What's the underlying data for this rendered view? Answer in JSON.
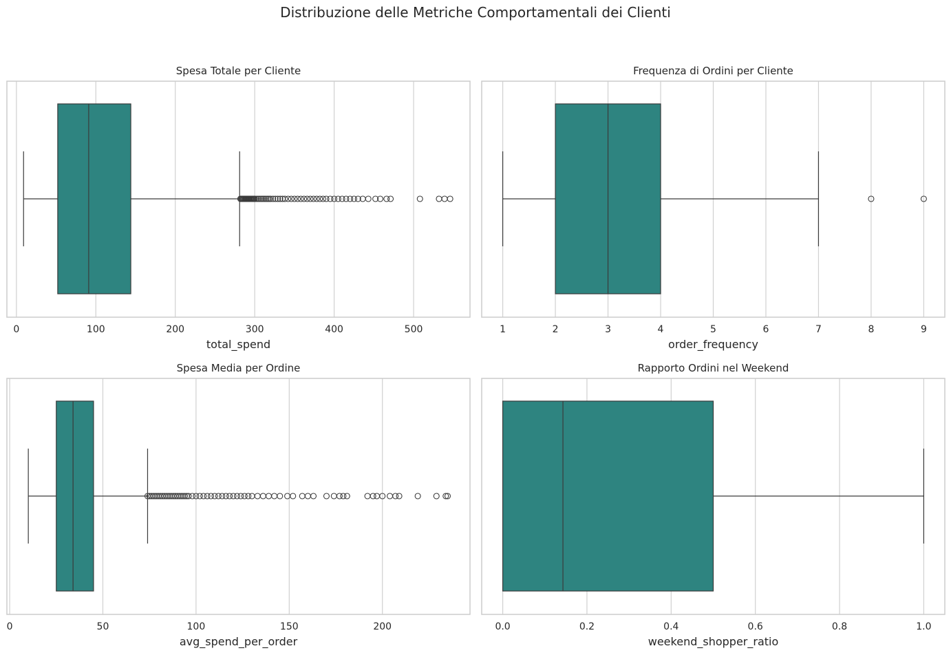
{
  "title": "Distribuzione delle Metriche Comportamentali dei Clienti",
  "colors": {
    "box_fill": "#2e8480",
    "line": "#3a3a3a",
    "grid": "#d0d0d0",
    "frame": "#cccccc"
  },
  "chart_data": [
    {
      "type": "boxplot",
      "title": "Spesa Totale per Cliente",
      "xlabel": "total_spend",
      "xlim": [
        -12,
        571
      ],
      "ticks": [
        0,
        100,
        200,
        300,
        400,
        500
      ],
      "tick_labels": [
        "0",
        "100",
        "200",
        "300",
        "400",
        "500"
      ],
      "grid": true,
      "stats": {
        "whisker_low": 9,
        "q1": 52,
        "median": 91,
        "q3": 144,
        "whisker_high": 281
      },
      "outliers": [
        282,
        283,
        284,
        285,
        286,
        287,
        288,
        289,
        290,
        291,
        292,
        293,
        294,
        295,
        296,
        297,
        298,
        299,
        300,
        302,
        304,
        306,
        308,
        310,
        312,
        314,
        316,
        318,
        320,
        323,
        326,
        329,
        332,
        335,
        338,
        342,
        346,
        350,
        354,
        358,
        362,
        366,
        370,
        374,
        378,
        382,
        386,
        390,
        395,
        400,
        405,
        410,
        415,
        420,
        425,
        430,
        436,
        443,
        452,
        458,
        466,
        471,
        508,
        532,
        539,
        546
      ]
    },
    {
      "type": "boxplot",
      "title": "Frequenza di Ordini per Cliente",
      "xlabel": "order_frequency",
      "xlim": [
        0.6,
        9.4
      ],
      "ticks": [
        1,
        2,
        3,
        4,
        5,
        6,
        7,
        8,
        9
      ],
      "tick_labels": [
        "1",
        "2",
        "3",
        "4",
        "5",
        "6",
        "7",
        "8",
        "9"
      ],
      "grid": true,
      "stats": {
        "whisker_low": 1,
        "q1": 2,
        "median": 3,
        "q3": 4,
        "whisker_high": 7
      },
      "outliers": [
        8,
        9
      ]
    },
    {
      "type": "boxplot",
      "title": "Spesa Media per Ordine",
      "xlabel": "avg_spend_per_order",
      "xlim": [
        -1.5,
        247
      ],
      "ticks": [
        0,
        50,
        100,
        150,
        200
      ],
      "tick_labels": [
        "0",
        "50",
        "100",
        "150",
        "200"
      ],
      "grid": true,
      "stats": {
        "whisker_low": 10,
        "q1": 25,
        "median": 34,
        "q3": 45,
        "whisker_high": 74
      },
      "outliers": [
        74,
        75,
        76,
        77,
        78,
        79,
        80,
        81,
        82,
        83,
        84,
        85,
        86,
        87,
        88,
        89,
        90,
        91,
        92,
        93,
        94,
        95,
        96,
        98,
        100,
        102,
        104,
        106,
        108,
        110,
        112,
        114,
        116,
        118,
        120,
        122,
        124,
        126,
        128,
        130,
        133,
        136,
        139,
        142,
        145,
        149,
        152,
        157,
        160,
        163,
        170,
        174,
        177,
        179,
        181,
        192,
        195,
        197,
        200,
        204,
        207,
        209,
        219,
        229,
        234,
        235
      ]
    },
    {
      "type": "boxplot",
      "title": "Rapporto Ordini nel Weekend",
      "xlabel": "weekend_shopper_ratio",
      "xlim": [
        -0.05,
        1.05
      ],
      "ticks": [
        0,
        0.2,
        0.4,
        0.6,
        0.8,
        1.0
      ],
      "tick_labels": [
        "0.0",
        "0.2",
        "0.4",
        "0.6",
        "0.8",
        "1.0"
      ],
      "grid": true,
      "stats": {
        "whisker_low": 0,
        "q1": 0,
        "median": 0.143,
        "q3": 0.5,
        "whisker_high": 1.0
      },
      "outliers": []
    }
  ]
}
